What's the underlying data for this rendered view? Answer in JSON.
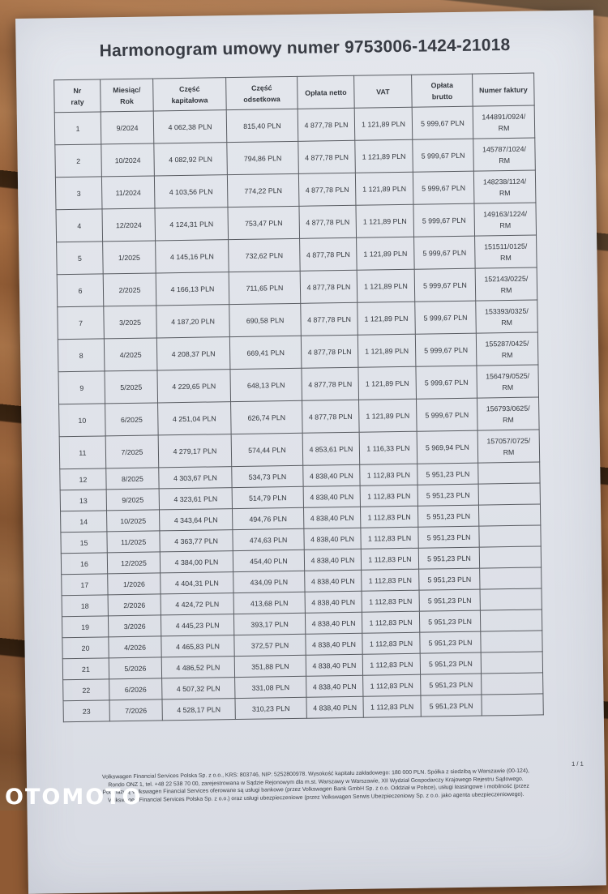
{
  "watermark": "OTOMOTO",
  "document": {
    "title": "Harmonogram umowy numer 9753006-1424-21018",
    "page_indicator": "1 / 1",
    "table": {
      "headers": [
        "Nr\nraty",
        "Miesiąc/\nRok",
        "Część\nkapitałowa",
        "Część\nodsetkowa",
        "Opłata netto",
        "VAT",
        "Opłata\nbrutto",
        "Numer faktury"
      ],
      "rows": [
        [
          "1",
          "9/2024",
          "4 062,38 PLN",
          "815,40 PLN",
          "4 877,78 PLN",
          "1 121,89 PLN",
          "5 999,67 PLN",
          "144891/0924/\nRM"
        ],
        [
          "2",
          "10/2024",
          "4 082,92 PLN",
          "794,86 PLN",
          "4 877,78 PLN",
          "1 121,89 PLN",
          "5 999,67 PLN",
          "145787/1024/\nRM"
        ],
        [
          "3",
          "11/2024",
          "4 103,56 PLN",
          "774,22 PLN",
          "4 877,78 PLN",
          "1 121,89 PLN",
          "5 999,67 PLN",
          "148238/1124/\nRM"
        ],
        [
          "4",
          "12/2024",
          "4 124,31 PLN",
          "753,47 PLN",
          "4 877,78 PLN",
          "1 121,89 PLN",
          "5 999,67 PLN",
          "149163/1224/\nRM"
        ],
        [
          "5",
          "1/2025",
          "4 145,16 PLN",
          "732,62 PLN",
          "4 877,78 PLN",
          "1 121,89 PLN",
          "5 999,67 PLN",
          "151511/0125/\nRM"
        ],
        [
          "6",
          "2/2025",
          "4 166,13 PLN",
          "711,65 PLN",
          "4 877,78 PLN",
          "1 121,89 PLN",
          "5 999,67 PLN",
          "152143/0225/\nRM"
        ],
        [
          "7",
          "3/2025",
          "4 187,20 PLN",
          "690,58 PLN",
          "4 877,78 PLN",
          "1 121,89 PLN",
          "5 999,67 PLN",
          "153393/0325/\nRM"
        ],
        [
          "8",
          "4/2025",
          "4 208,37 PLN",
          "669,41 PLN",
          "4 877,78 PLN",
          "1 121,89 PLN",
          "5 999,67 PLN",
          "155287/0425/\nRM"
        ],
        [
          "9",
          "5/2025",
          "4 229,65 PLN",
          "648,13 PLN",
          "4 877,78 PLN",
          "1 121,89 PLN",
          "5 999,67 PLN",
          "156479/0525/\nRM"
        ],
        [
          "10",
          "6/2025",
          "4 251,04 PLN",
          "626,74 PLN",
          "4 877,78 PLN",
          "1 121,89 PLN",
          "5 999,67 PLN",
          "156793/0625/\nRM"
        ],
        [
          "11",
          "7/2025",
          "4 279,17 PLN",
          "574,44 PLN",
          "4 853,61 PLN",
          "1 116,33 PLN",
          "5 969,94 PLN",
          "157057/0725/\nRM"
        ],
        [
          "12",
          "8/2025",
          "4 303,67 PLN",
          "534,73 PLN",
          "4 838,40 PLN",
          "1 112,83 PLN",
          "5 951,23 PLN",
          ""
        ],
        [
          "13",
          "9/2025",
          "4 323,61 PLN",
          "514,79 PLN",
          "4 838,40 PLN",
          "1 112,83 PLN",
          "5 951,23 PLN",
          ""
        ],
        [
          "14",
          "10/2025",
          "4 343,64 PLN",
          "494,76 PLN",
          "4 838,40 PLN",
          "1 112,83 PLN",
          "5 951,23 PLN",
          ""
        ],
        [
          "15",
          "11/2025",
          "4 363,77 PLN",
          "474,63 PLN",
          "4 838,40 PLN",
          "1 112,83 PLN",
          "5 951,23 PLN",
          ""
        ],
        [
          "16",
          "12/2025",
          "4 384,00 PLN",
          "454,40 PLN",
          "4 838,40 PLN",
          "1 112,83 PLN",
          "5 951,23 PLN",
          ""
        ],
        [
          "17",
          "1/2026",
          "4 404,31 PLN",
          "434,09 PLN",
          "4 838,40 PLN",
          "1 112,83 PLN",
          "5 951,23 PLN",
          ""
        ],
        [
          "18",
          "2/2026",
          "4 424,72 PLN",
          "413,68 PLN",
          "4 838,40 PLN",
          "1 112,83 PLN",
          "5 951,23 PLN",
          ""
        ],
        [
          "19",
          "3/2026",
          "4 445,23 PLN",
          "393,17 PLN",
          "4 838,40 PLN",
          "1 112,83 PLN",
          "5 951,23 PLN",
          ""
        ],
        [
          "20",
          "4/2026",
          "4 465,83 PLN",
          "372,57 PLN",
          "4 838,40 PLN",
          "1 112,83 PLN",
          "5 951,23 PLN",
          ""
        ],
        [
          "21",
          "5/2026",
          "4 486,52 PLN",
          "351,88 PLN",
          "4 838,40 PLN",
          "1 112,83 PLN",
          "5 951,23 PLN",
          ""
        ],
        [
          "22",
          "6/2026",
          "4 507,32 PLN",
          "331,08 PLN",
          "4 838,40 PLN",
          "1 112,83 PLN",
          "5 951,23 PLN",
          ""
        ],
        [
          "23",
          "7/2026",
          "4 528,17 PLN",
          "310,23 PLN",
          "4 838,40 PLN",
          "1 112,83 PLN",
          "5 951,23 PLN",
          ""
        ]
      ]
    },
    "footer_lines": [
      "Volkswagen Financial Services Polska Sp. z o.o., KRS: 803746, NIP: 5252800978. Wysokość kapitału zakładowego: 180 000 PLN. Spółka z siedzibą w Warszawie (00-124),",
      "Rondo ONZ 1, tel. +48 22 538 70 00, zarejestrowana w Sądzie Rejonowym dla m.st. Warszawy w Warszawie, XII Wydział Gospodarczy Krajowego Rejestru Sądowego.",
      "Pod nazwą Volkswagen Financial Services oferowane są usługi bankowe (przez Volkswagen Bank GmbH Sp. z o.o. Oddział w Polsce), usługi leasingowe i mobilność (przez",
      "Volkswagen Financial Services Polska Sp. z o.o.) oraz usługi ubezpieczeniowe (przez Volkswagen Serwis Ubezpieczeniowy Sp. z o.o. jako agenta ubezpieczeniowego)."
    ]
  },
  "colors": {
    "paper": "#dfe2e9",
    "ink": "#33373d",
    "table_line": "#585b61",
    "wood": "#96603a",
    "wood_gap": "#3b2513",
    "watermark": "#ffffff"
  }
}
